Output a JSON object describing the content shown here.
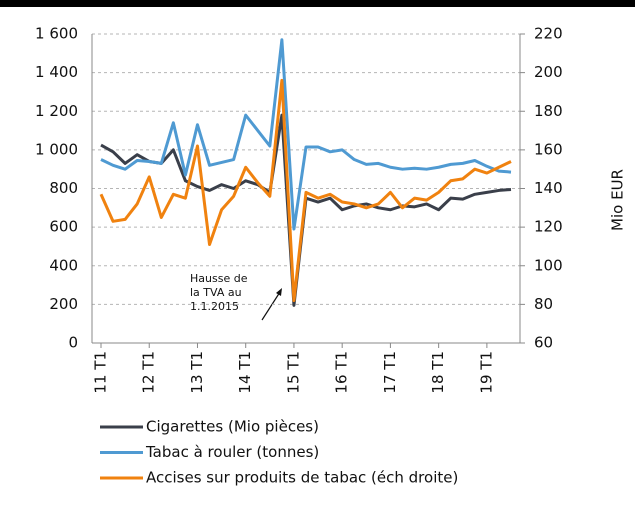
{
  "chart_data": {
    "type": "line",
    "categories": [
      "11 T1",
      null,
      null,
      null,
      "12 T1",
      null,
      null,
      null,
      "13 T1",
      null,
      null,
      null,
      "14 T1",
      null,
      null,
      null,
      "15 T1",
      null,
      null,
      null,
      "16 T1",
      null,
      null,
      null,
      "17 T1",
      null,
      null,
      null,
      "18 T1",
      null,
      null,
      null,
      "19 T1",
      null,
      null
    ],
    "series": [
      {
        "name": "Cigarettes (Mio pièces)",
        "color": "#3a3f4a",
        "values": [
          1025,
          990,
          930,
          975,
          940,
          930,
          1000,
          840,
          810,
          790,
          820,
          800,
          840,
          820,
          780,
          1180,
          195,
          750,
          730,
          750,
          690,
          710,
          720,
          700,
          690,
          710,
          705,
          720,
          690,
          750,
          745,
          770,
          780,
          790,
          795
        ]
      },
      {
        "name": "Tabac à rouler (tonnes)",
        "color": "#4f9ad2",
        "values": [
          950,
          920,
          900,
          945,
          940,
          930,
          1140,
          870,
          1130,
          920,
          935,
          950,
          1180,
          1100,
          1020,
          1570,
          590,
          1015,
          1015,
          990,
          1000,
          950,
          925,
          930,
          910,
          900,
          905,
          900,
          910,
          925,
          930,
          945,
          915,
          890,
          885
        ]
      },
      {
        "name": "Accises sur produits de tabac (éch droite)",
        "color": "#f0820f",
        "axis": "y2",
        "values": [
          137,
          123,
          124,
          132,
          146,
          125,
          137,
          135,
          162,
          111,
          129,
          136,
          151,
          143,
          136,
          196,
          82,
          138,
          135,
          137,
          133,
          132,
          130,
          132,
          138,
          130,
          135,
          134,
          138,
          144,
          145,
          150,
          148,
          151,
          154
        ]
      }
    ],
    "ylim": [
      0,
      1600
    ],
    "yticks": [
      0,
      200,
      400,
      600,
      800,
      {
        "value": 1000,
        "label": "1 000"
      },
      {
        "value": 1200,
        "label": "1 200"
      },
      {
        "value": 1400,
        "label": "1 400"
      },
      {
        "value": 1600,
        "label": "1 600"
      }
    ],
    "y2lim": [
      60,
      220
    ],
    "y2ticks": [
      60,
      80,
      100,
      120,
      140,
      160,
      180,
      200,
      220
    ],
    "y2label": "Mio EUR",
    "annotation": [
      "Hausse de",
      "la TVA au",
      "1.1.2015"
    ],
    "grid": true
  }
}
